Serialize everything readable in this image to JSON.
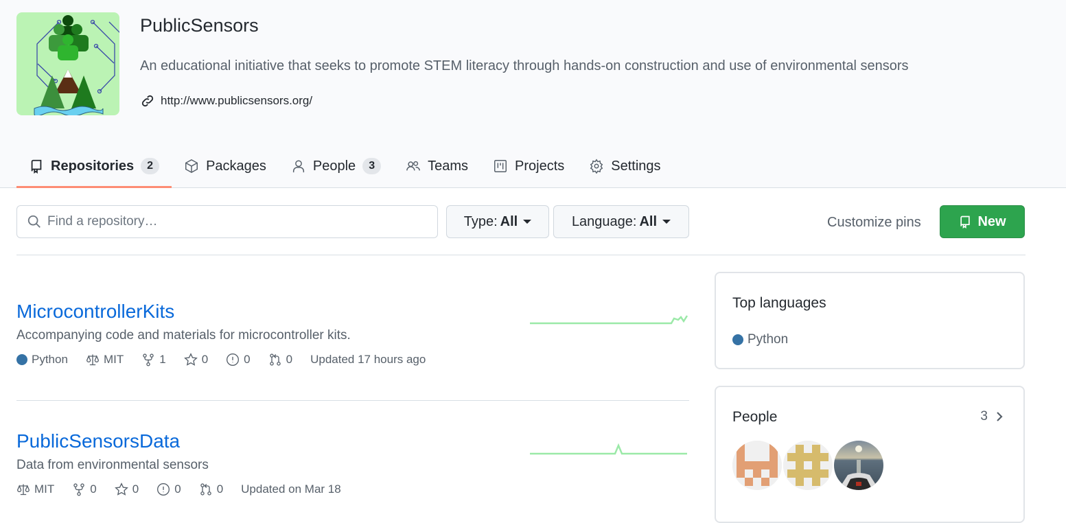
{
  "org": {
    "name": "PublicSensors",
    "description": "An educational initiative that seeks to promote STEM literacy through hands-on construction and use of environmental sensors",
    "url": "http://www.publicsensors.org/"
  },
  "tabs": [
    {
      "label": "Repositories",
      "count": "2",
      "icon": "repo-icon",
      "selected": true
    },
    {
      "label": "Packages",
      "icon": "package-icon"
    },
    {
      "label": "People",
      "count": "3",
      "icon": "person-icon"
    },
    {
      "label": "Teams",
      "icon": "people-icon"
    },
    {
      "label": "Projects",
      "icon": "project-icon"
    },
    {
      "label": "Settings",
      "icon": "gear-icon"
    }
  ],
  "toolbar": {
    "search_placeholder": "Find a repository…",
    "type_label": "Type:",
    "type_value": "All",
    "language_label": "Language:",
    "language_value": "All",
    "customize_pins": "Customize pins",
    "new_label": "New"
  },
  "repos": [
    {
      "name": "MicrocontrollerKits",
      "description": "Accompanying code and materials for microcontroller kits.",
      "language": "Python",
      "license": "MIT",
      "forks": "1",
      "stars": "0",
      "issues": "0",
      "prs": "0",
      "updated": "Updated 17 hours ago"
    },
    {
      "name": "PublicSensorsData",
      "description": "Data from environmental sensors",
      "license": "MIT",
      "forks": "0",
      "stars": "0",
      "issues": "0",
      "prs": "0",
      "updated": "Updated on Mar 18"
    }
  ],
  "sidebar": {
    "top_languages_title": "Top languages",
    "languages": [
      {
        "name": "Python",
        "color": "#3572a5"
      }
    ],
    "people_title": "People",
    "people_count": "3"
  },
  "colors": {
    "accent": "#0969da",
    "new_button": "#2da44e",
    "tab_underline": "#fd8c73",
    "python": "#3572a5"
  }
}
